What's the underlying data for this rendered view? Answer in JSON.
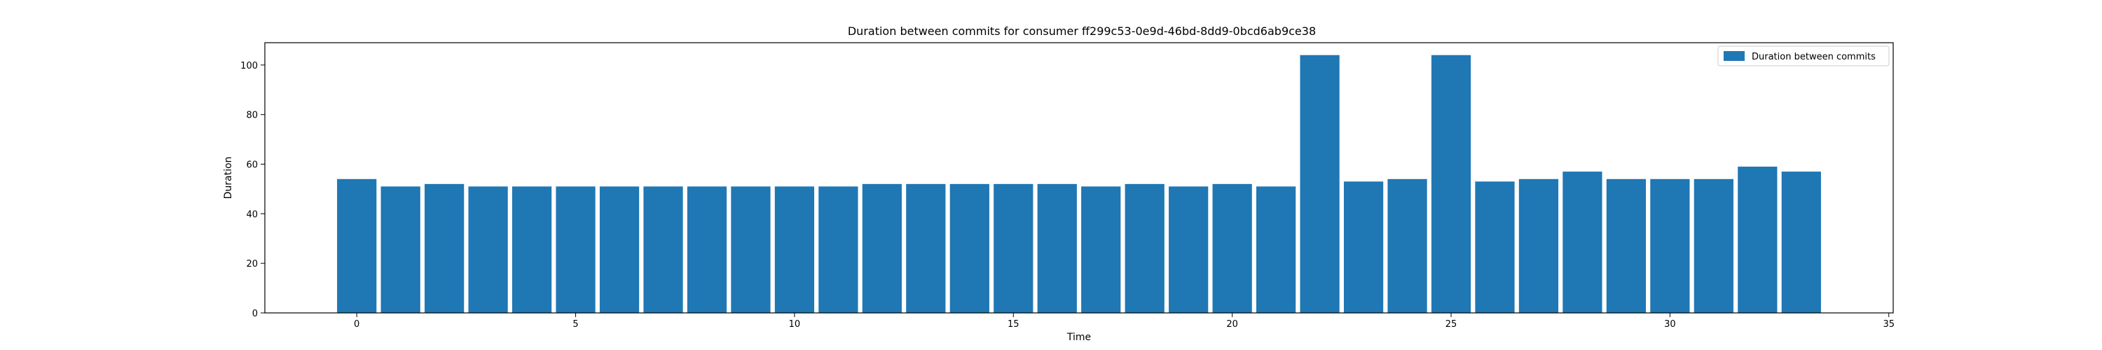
{
  "chart_data": {
    "type": "bar",
    "title": "Duration between commits for consumer ff299c53-0e9d-46bd-8dd9-0bcd6ab9ce38",
    "xlabel": "Time",
    "ylabel": "Duration",
    "xlim": [
      -2.1,
      35.1
    ],
    "ylim": [
      0,
      109
    ],
    "xticks": [
      0,
      5,
      10,
      15,
      20,
      25,
      30,
      35
    ],
    "yticks": [
      0,
      20,
      40,
      60,
      80,
      100
    ],
    "grid": false,
    "legend_position": "top-right",
    "bar_color": "#1f77b4",
    "series": [
      {
        "name": "Duration between commits",
        "x": [
          0,
          1,
          2,
          3,
          4,
          5,
          6,
          7,
          8,
          9,
          10,
          11,
          12,
          13,
          14,
          15,
          16,
          17,
          18,
          19,
          20,
          21,
          22,
          23,
          24,
          25,
          26,
          27,
          28,
          29,
          30,
          31,
          32,
          33
        ],
        "values": [
          54,
          51,
          52,
          51,
          51,
          51,
          51,
          51,
          51,
          51,
          51,
          51,
          52,
          52,
          52,
          52,
          52,
          51,
          52,
          51,
          52,
          51,
          104,
          53,
          54,
          104,
          53,
          54,
          57,
          54,
          54,
          54,
          59,
          57
        ]
      }
    ]
  }
}
